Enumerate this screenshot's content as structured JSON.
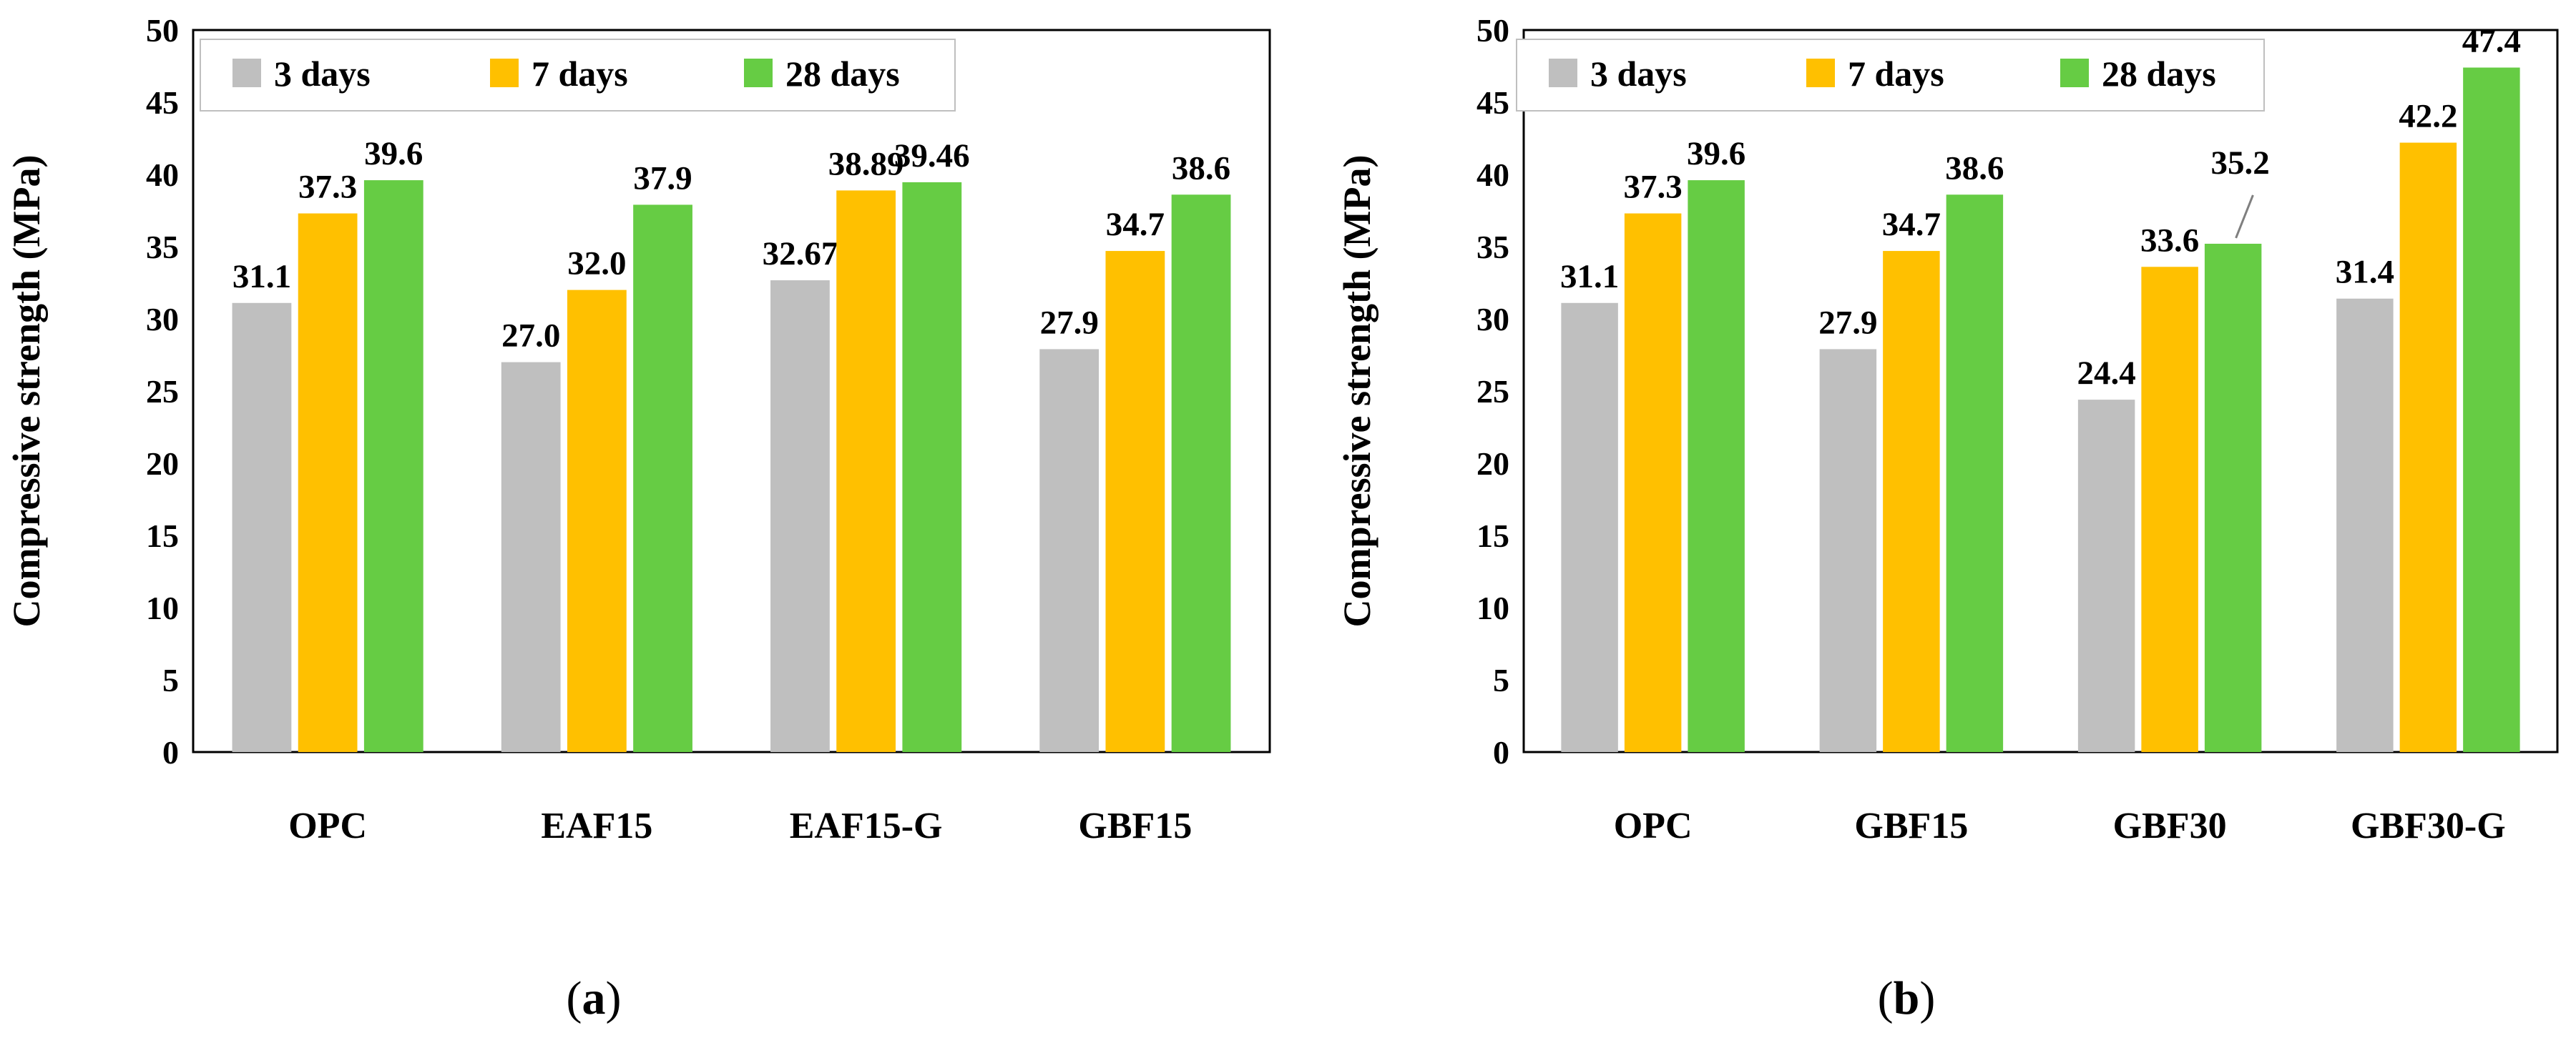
{
  "chart_data": [
    {
      "type": "bar",
      "panel": "a",
      "caption_prefix": "(",
      "caption_letter": "a",
      "caption_suffix": ")",
      "ylabel": "Compressive strength (MPa)",
      "ylim": [
        0,
        50
      ],
      "yticks": [
        0,
        5,
        10,
        15,
        20,
        25,
        30,
        35,
        40,
        45,
        50
      ],
      "legend_position": "top-left",
      "categories": [
        "OPC",
        "EAF15",
        "EAF15-G",
        "GBF15"
      ],
      "series": [
        {
          "name": "3 days",
          "color": "#bfbfbf",
          "values": [
            31.1,
            27.0,
            32.67,
            27.9
          ],
          "labels": [
            "31.1",
            "27.0",
            "32.67",
            "27.9"
          ]
        },
        {
          "name": "7 days",
          "color": "#ffc000",
          "values": [
            37.3,
            32.0,
            38.89,
            34.7
          ],
          "labels": [
            "37.3",
            "32.0",
            "38.89",
            "34.7"
          ]
        },
        {
          "name": "28 days",
          "color": "#66cc44",
          "values": [
            39.6,
            37.9,
            39.46,
            38.6
          ],
          "labels": [
            "39.6",
            "37.9",
            "39.46",
            "38.6"
          ]
        }
      ]
    },
    {
      "type": "bar",
      "panel": "b",
      "caption_prefix": "(",
      "caption_letter": "b",
      "caption_suffix": ")",
      "ylabel": "Compressive strength (MPa)",
      "ylim": [
        0,
        50
      ],
      "yticks": [
        0,
        5,
        10,
        15,
        20,
        25,
        30,
        35,
        40,
        45,
        50
      ],
      "legend_position": "top-left",
      "categories": [
        "OPC",
        "GBF15",
        "GBF30",
        "GBF30-G"
      ],
      "series": [
        {
          "name": "3 days",
          "color": "#bfbfbf",
          "values": [
            31.1,
            27.9,
            24.4,
            31.4
          ],
          "labels": [
            "31.1",
            "27.9",
            "24.4",
            "31.4"
          ]
        },
        {
          "name": "7 days",
          "color": "#ffc000",
          "values": [
            37.3,
            34.7,
            33.6,
            42.2
          ],
          "labels": [
            "37.3",
            "34.7",
            "33.6",
            "42.2"
          ]
        },
        {
          "name": "28 days",
          "color": "#66cc44",
          "values": [
            39.6,
            38.6,
            35.2,
            47.4
          ],
          "labels": [
            "39.6",
            "38.6",
            "35.2",
            "47.4"
          ]
        }
      ]
    }
  ]
}
